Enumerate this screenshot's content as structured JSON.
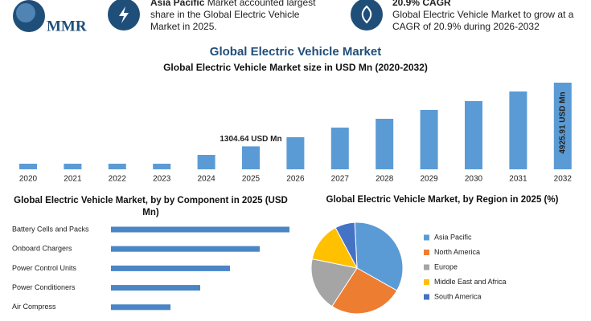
{
  "header": {
    "logo": "MMR",
    "highlights": [
      {
        "title": "Asia Pacific",
        "text": "Market accounted largest share in the Global Electric Vehicle Market in 2025."
      },
      {
        "title": "20.9% CAGR",
        "text": "Global Electric Vehicle Market to grow at a CAGR of 20.9% during 2026-2032"
      }
    ]
  },
  "chart_data": [
    {
      "type": "bar",
      "title": "Global Electric Vehicle Market",
      "subtitle": "Global Electric Vehicle Market size in USD Mn (2020-2032)",
      "categories": [
        "2020",
        "2021",
        "2022",
        "2023",
        "2024",
        "2025",
        "2026",
        "2027",
        "2028",
        "2029",
        "2030",
        "2031",
        "2032"
      ],
      "values": [
        320,
        320,
        320,
        320,
        820,
        1304.64,
        1824,
        2372,
        2873,
        3375,
        3877,
        4424,
        4925.91
      ],
      "value_labels": [
        null,
        null,
        null,
        null,
        null,
        "1304.64 USD Mn",
        null,
        null,
        null,
        null,
        null,
        null,
        "4925.91 USD Mn"
      ],
      "color": "#5b9bd5"
    },
    {
      "type": "hbar",
      "title": "Global Electric Vehicle Market, by by Component in 2025 (USD Mn)",
      "categories": [
        "Battery Cells and Packs",
        "Onboard Chargers",
        "Power Control Units",
        "Power Conditioners",
        "Air Compress"
      ],
      "values": [
        222,
        185,
        148,
        111,
        74
      ],
      "color": "#4a86c6"
    },
    {
      "type": "pie",
      "title": "Global Electric Vehicle Market, by Region in 2025 (%)",
      "series": [
        {
          "name": "Asia Pacific",
          "color": "#5b9bd5",
          "values": [
            34
          ]
        },
        {
          "name": "North America",
          "color": "#ed7d31",
          "values": [
            26
          ]
        },
        {
          "name": "Europe",
          "color": "#a5a5a5",
          "values": [
            19
          ]
        },
        {
          "name": "Middle East and Africa",
          "color": "#ffc000",
          "values": [
            14
          ]
        },
        {
          "name": "South America",
          "color": "#4472c4",
          "values": [
            7
          ]
        }
      ]
    }
  ]
}
